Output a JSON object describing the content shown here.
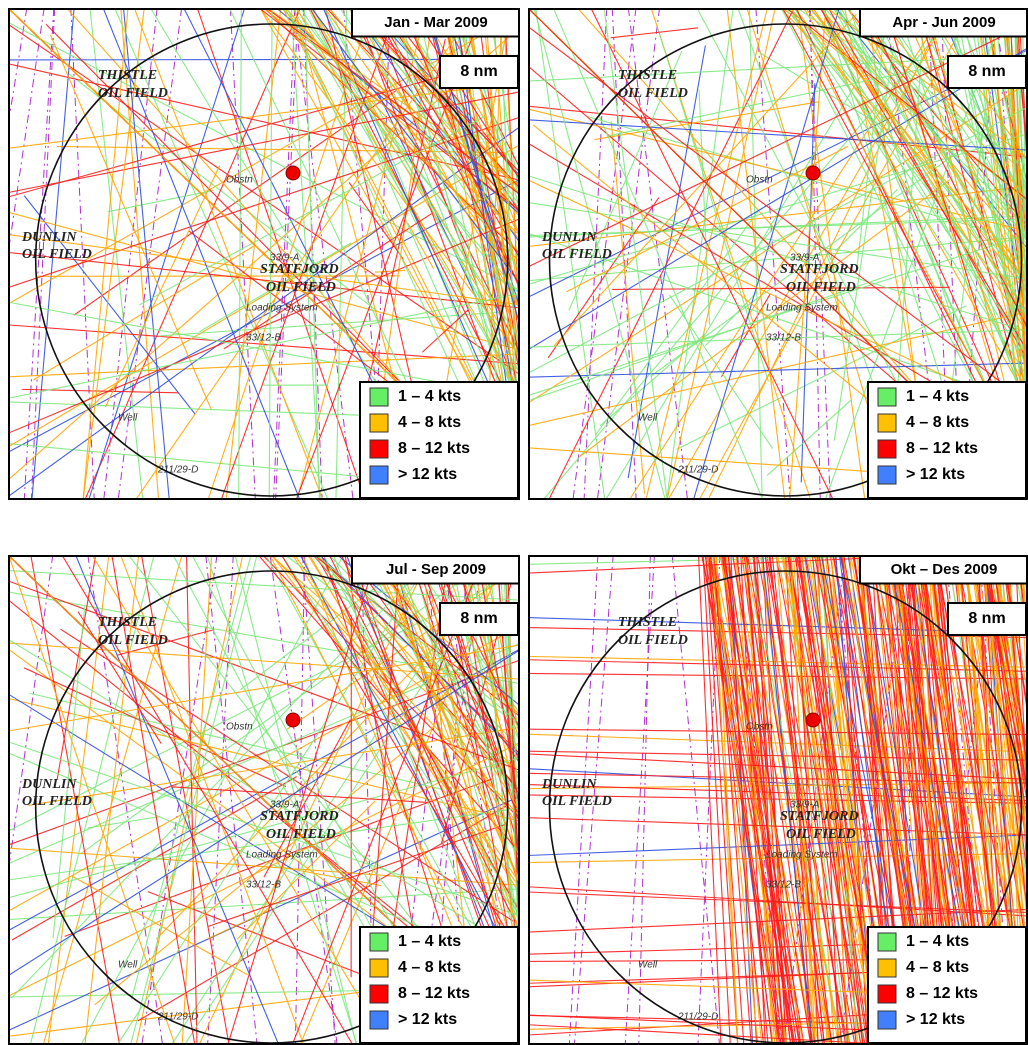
{
  "panels": [
    {
      "title": "Jan - Mar 2009",
      "scale": "8 nm",
      "legend": [
        {
          "label": "1 – 4 kts",
          "color": "#66ee66"
        },
        {
          "label": "4 – 8 kts",
          "color": "#ffc000"
        },
        {
          "label": "8 – 12 kts",
          "color": "#ff0000"
        },
        {
          "label": "> 12 kts",
          "color": "#4080ff"
        }
      ],
      "map_labels": [
        "THISTLE",
        "OIL FIELD",
        "DUNLIN",
        "OIL FIELD",
        "STATFJORD",
        "OIL FIELD",
        "Obstn",
        "33/9-A",
        "33/12-B",
        "211/29-D",
        "Loading System",
        "Well"
      ]
    },
    {
      "title": "Apr - Jun 2009",
      "scale": "8 nm",
      "legend": [
        {
          "label": "1 – 4 kts",
          "color": "#66ee66"
        },
        {
          "label": "4 – 8 kts",
          "color": "#ffc000"
        },
        {
          "label": "8 – 12 kts",
          "color": "#ff0000"
        },
        {
          "label": "> 12 kts",
          "color": "#4080ff"
        }
      ],
      "map_labels": [
        "THISTLE",
        "OIL FIELD",
        "DUNLIN",
        "OIL FIELD",
        "STATFJORD",
        "OIL FIELD",
        "Obstn",
        "33/9-A",
        "33/12-B",
        "211/29-D",
        "Loading System",
        "Well"
      ]
    },
    {
      "title": "Jul - Sep 2009",
      "scale": "8 nm",
      "legend": [
        {
          "label": "1 – 4 kts",
          "color": "#66ee66"
        },
        {
          "label": "4 – 8 kts",
          "color": "#ffc000"
        },
        {
          "label": "8 – 12 kts",
          "color": "#ff0000"
        },
        {
          "label": "> 12 kts",
          "color": "#4080ff"
        }
      ],
      "map_labels": [
        "THISTLE",
        "OIL FIELD",
        "DUNLIN",
        "OIL FIELD",
        "STATFJORD",
        "OIL FIELD",
        "Obstn",
        "33/9-A",
        "33/12-B",
        "211/29-D",
        "Loading System",
        "Well"
      ]
    },
    {
      "title": "Okt – Des 2009",
      "scale": "8 nm",
      "legend": [
        {
          "label": "1 – 4 kts",
          "color": "#66ee66"
        },
        {
          "label": "4 – 8 kts",
          "color": "#ffc000"
        },
        {
          "label": "8 – 12 kts",
          "color": "#ff0000"
        },
        {
          "label": "> 12 kts",
          "color": "#4080ff"
        }
      ],
      "map_labels": [
        "THISTLE",
        "OIL FIELD",
        "DUNLIN",
        "OIL FIELD",
        "STATFJORD",
        "OIL FIELD",
        "Obstn",
        "33/9-A",
        "33/12-B",
        "211/29-D",
        "Loading System",
        "Well"
      ]
    }
  ]
}
